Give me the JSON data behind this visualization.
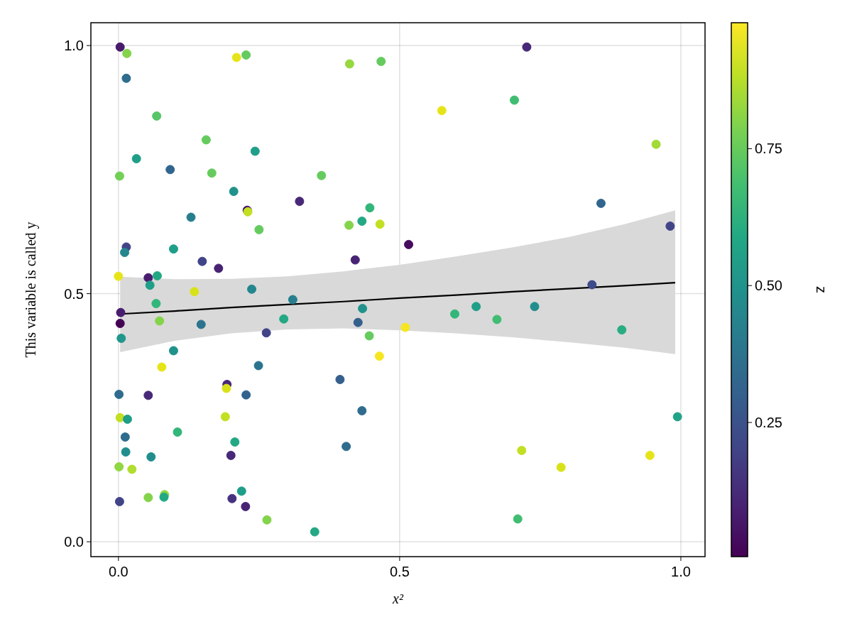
{
  "chart_data": {
    "type": "scatter",
    "xlabel": "x²",
    "ylabel": "This variable is called y",
    "clabel": "z",
    "xlim": [
      -0.049,
      1.043
    ],
    "ylim": [
      -0.03,
      1.046
    ],
    "xticks": [
      {
        "value": 0,
        "label": "0.0"
      },
      {
        "value": 0.5,
        "label": "0.5"
      },
      {
        "value": 1,
        "label": "1.0"
      }
    ],
    "yticks": [
      {
        "value": 0,
        "label": "0.0"
      },
      {
        "value": 0.5,
        "label": "0.5"
      },
      {
        "value": 1,
        "label": "1.0"
      }
    ],
    "clim": [
      0.005,
      0.98
    ],
    "cticks": [
      {
        "value": 0.25,
        "label": "0.25"
      },
      {
        "value": 0.5,
        "label": "0.50"
      },
      {
        "value": 0.75,
        "label": "0.75"
      }
    ],
    "grid": true,
    "series": [
      {
        "marker": "circle",
        "colors": [
          "#481a6c",
          "#84d44b",
          "#2f6c8e",
          "#56c667",
          "#e5e419",
          "#65cb5e",
          "#65cb5e",
          "#1f9e89",
          "#1f9e89",
          "#32658e",
          "#73d056",
          "#65cb5e",
          "#20928c",
          "#482878",
          "#471164",
          "#c2df23",
          "#277f8e",
          "#65cb5e",
          "#414487",
          "#24868e",
          "#1f9e89",
          "#414487",
          "#482374",
          "#e5e419",
          "#481d6f",
          "#22a884",
          "#1f9e89",
          "#d8e219",
          "#24868e",
          "#277f8e",
          "#32b67a",
          "#481d6f",
          "#440154",
          "#84d44b",
          "#2c738e",
          "#22a884",
          "#414487",
          "#1f978b",
          "#20928c",
          "#e5e419",
          "#2c738e",
          "#482878",
          "#d8e219",
          "#2f6c8e",
          "#482878",
          "#33638d",
          "#c2df23",
          "#1f9e89",
          "#c2df23",
          "#32b67a",
          "#2f6c8e",
          "#22a884",
          "#218e8d",
          "#218e8d",
          "#482878",
          "#90d743",
          "#b0dd2f",
          "#1f9e89",
          "#84d44b",
          "#90d743",
          "#22a884",
          "#414487",
          "#46337f",
          "#482374",
          "#84d44b",
          "#95d840",
          "#65cb5e",
          "#e5e419",
          "#65cb5e",
          "#32b67a",
          "#22a884",
          "#84d44b",
          "#c2df23",
          "#460b5e",
          "#482374",
          "#20928c",
          "#355f8d",
          "#65cb5e",
          "#f6e620",
          "#32b67a",
          "#1f9e89",
          "#40bd72",
          "#f6e620",
          "#355f8d",
          "#2f6c8e",
          "#2f6c8e",
          "#22a884",
          "#482878",
          "#40bd72",
          "#a2da37",
          "#32658e",
          "#414487",
          "#3e4a89",
          "#218e8d",
          "#27ad81",
          "#20a386",
          "#c2df23",
          "#d8e219",
          "#e5e419",
          "#40bd72"
        ],
        "x": [
          0.003,
          0.015,
          0.014,
          0.068,
          0.21,
          0.227,
          0.156,
          0.243,
          0.032,
          0.092,
          0.002,
          0.166,
          0.205,
          0.322,
          0.229,
          0.23,
          0.129,
          0.25,
          0.014,
          0.011,
          0.098,
          0.149,
          0.178,
          0.0,
          0.053,
          0.069,
          0.056,
          0.135,
          0.237,
          0.31,
          0.067,
          0.004,
          0.003,
          0.073,
          0.147,
          0.294,
          0.263,
          0.005,
          0.098,
          0.077,
          0.249,
          0.193,
          0.192,
          0.001,
          0.053,
          0.227,
          0.003,
          0.016,
          0.19,
          0.105,
          0.012,
          0.207,
          0.013,
          0.058,
          0.2,
          0.001,
          0.024,
          0.219,
          0.053,
          0.082,
          0.081,
          0.002,
          0.202,
          0.226,
          0.264,
          0.411,
          0.467,
          0.575,
          0.361,
          0.447,
          0.433,
          0.41,
          0.465,
          0.516,
          0.421,
          0.434,
          0.426,
          0.446,
          0.51,
          0.598,
          0.636,
          0.673,
          0.464,
          0.394,
          0.433,
          0.405,
          0.349,
          0.726,
          0.704,
          0.956,
          0.858,
          0.981,
          0.842,
          0.74,
          0.895,
          0.994,
          0.717,
          0.787,
          0.945,
          0.71
        ],
        "values": [
          0.997,
          0.984,
          0.934,
          0.858,
          0.976,
          0.981,
          0.81,
          0.787,
          0.772,
          0.75,
          0.737,
          0.743,
          0.706,
          0.686,
          0.668,
          0.665,
          0.654,
          0.629,
          0.594,
          0.583,
          0.59,
          0.565,
          0.551,
          0.535,
          0.532,
          0.536,
          0.517,
          0.504,
          0.509,
          0.488,
          0.48,
          0.462,
          0.44,
          0.445,
          0.438,
          0.449,
          0.421,
          0.41,
          0.385,
          0.352,
          0.355,
          0.317,
          0.309,
          0.297,
          0.295,
          0.296,
          0.25,
          0.247,
          0.252,
          0.221,
          0.211,
          0.201,
          0.181,
          0.171,
          0.174,
          0.151,
          0.146,
          0.102,
          0.089,
          0.095,
          0.09,
          0.081,
          0.087,
          0.071,
          0.044,
          0.963,
          0.968,
          0.869,
          0.738,
          0.673,
          0.646,
          0.638,
          0.64,
          0.599,
          0.568,
          0.47,
          0.442,
          0.415,
          0.432,
          0.459,
          0.474,
          0.448,
          0.374,
          0.327,
          0.264,
          0.192,
          0.02,
          0.997,
          0.89,
          0.801,
          0.682,
          0.636,
          0.518,
          0.474,
          0.427,
          0.252,
          0.184,
          0.15,
          0.174,
          0.046
        ],
        "cvalues": [
          0.07,
          0.8,
          0.35,
          0.72,
          0.95,
          0.75,
          0.75,
          0.55,
          0.55,
          0.33,
          0.77,
          0.75,
          0.5,
          0.12,
          0.05,
          0.9,
          0.42,
          0.75,
          0.2,
          0.45,
          0.55,
          0.2,
          0.1,
          0.95,
          0.08,
          0.6,
          0.55,
          0.93,
          0.45,
          0.42,
          0.65,
          0.08,
          0.01,
          0.8,
          0.38,
          0.6,
          0.2,
          0.52,
          0.5,
          0.95,
          0.38,
          0.12,
          0.93,
          0.35,
          0.12,
          0.32,
          0.9,
          0.55,
          0.9,
          0.65,
          0.35,
          0.6,
          0.48,
          0.48,
          0.12,
          0.82,
          0.87,
          0.55,
          0.8,
          0.82,
          0.6,
          0.2,
          0.15,
          0.1,
          0.8,
          0.83,
          0.75,
          0.95,
          0.75,
          0.65,
          0.6,
          0.8,
          0.9,
          0.03,
          0.1,
          0.5,
          0.3,
          0.75,
          0.97,
          0.65,
          0.55,
          0.68,
          0.97,
          0.3,
          0.35,
          0.35,
          0.6,
          0.12,
          0.68,
          0.85,
          0.33,
          0.2,
          0.22,
          0.48,
          0.61,
          0.58,
          0.9,
          0.93,
          0.95,
          0.68
        ]
      },
      {
        "type": "line",
        "marker": "none",
        "color": "#000000",
        "x": [
          0.003,
          0.1,
          0.2,
          0.3,
          0.4,
          0.5,
          0.6,
          0.7,
          0.8,
          0.9,
          0.99
        ],
        "values": [
          0.459,
          0.465,
          0.472,
          0.478,
          0.484,
          0.491,
          0.497,
          0.504,
          0.51,
          0.516,
          0.522
        ],
        "lower": [
          0.382,
          0.405,
          0.42,
          0.428,
          0.43,
          0.426,
          0.42,
          0.412,
          0.402,
          0.391,
          0.378
        ],
        "upper": [
          0.534,
          0.529,
          0.53,
          0.535,
          0.545,
          0.558,
          0.575,
          0.593,
          0.614,
          0.64,
          0.668
        ]
      }
    ]
  }
}
